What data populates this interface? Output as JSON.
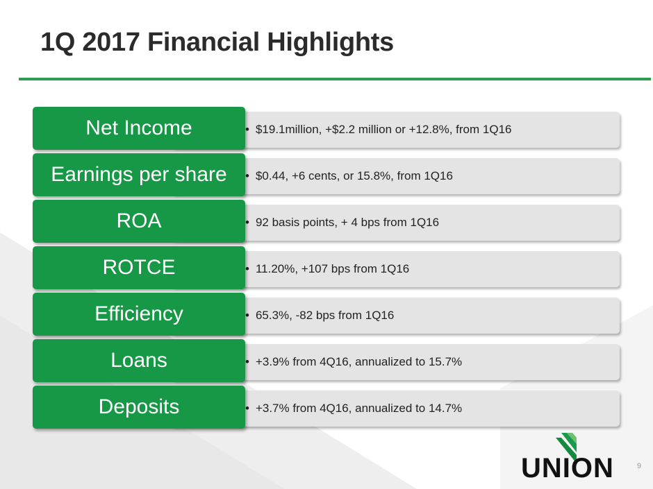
{
  "slide": {
    "title": "1Q 2017 Financial Highlights",
    "page_number": "9",
    "accent_color": "#179846",
    "bar_color": "#e4e4e4"
  },
  "highlights": [
    {
      "label": "Net Income",
      "bullet": "•",
      "text": "$19.1million, +$2.2 million or +12.8%, from 1Q16"
    },
    {
      "label": "Earnings per share",
      "bullet": "•",
      "text": "$0.44, +6 cents, or 15.8%, from 1Q16"
    },
    {
      "label": "ROA",
      "bullet": "•",
      "text": "92 basis points, + 4 bps from 1Q16"
    },
    {
      "label": "ROTCE",
      "bullet": "•",
      "text": "11.20%, +107 bps from 1Q16"
    },
    {
      "label": "Efficiency",
      "bullet": "•",
      "text": "65.3%, -82 bps from 1Q16"
    },
    {
      "label": "Loans",
      "bullet": "•",
      "text": "+3.9% from 4Q16, annualized to 15.7%"
    },
    {
      "label": "Deposits",
      "bullet": "•",
      "text": "+3.7% from 4Q16, annualized to 14.7%"
    }
  ],
  "logo": {
    "text": "UNION",
    "icon": "union-chevron-logo-icon"
  }
}
